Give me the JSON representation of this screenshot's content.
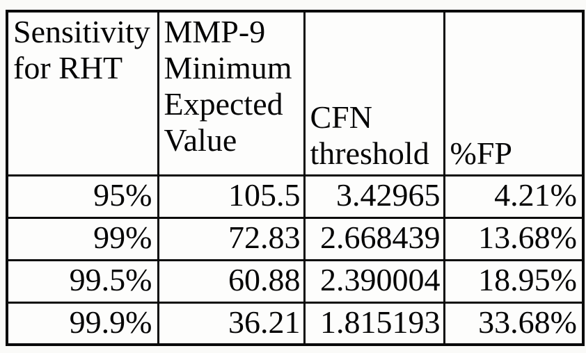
{
  "colors": {
    "background": "#fafaf8",
    "border": "#0a0a0a",
    "text": "#050505"
  },
  "table": {
    "headers": [
      "Sensitivity for RHT",
      "MMP-9 Minimum Expected Value",
      "CFN threshold",
      "%FP"
    ],
    "rows": [
      [
        "95%",
        "105.5",
        "3.42965",
        "4.21%"
      ],
      [
        "99%",
        "72.83",
        "2.668439",
        "13.68%"
      ],
      [
        "99.5%",
        "60.88",
        "2.390004",
        "18.95%"
      ],
      [
        "99.9%",
        "36.21",
        "1.815193",
        "33.68%"
      ]
    ]
  }
}
